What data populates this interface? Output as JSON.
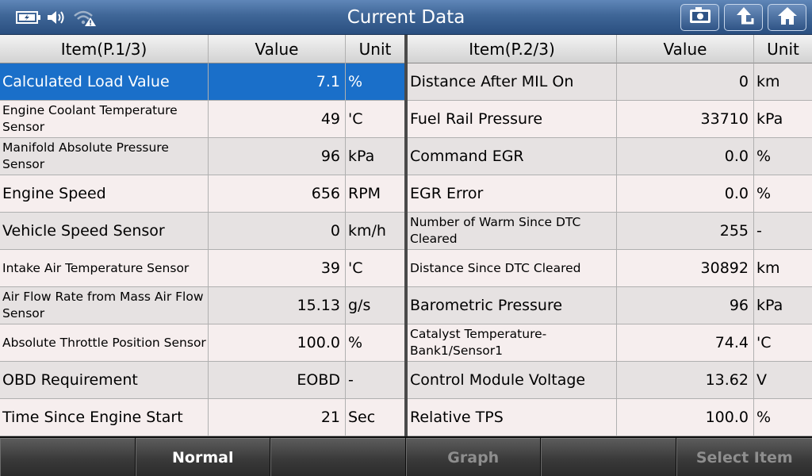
{
  "title": "Current Data",
  "footer": [
    "",
    "Normal",
    "",
    "Graph",
    "",
    "Select Item"
  ],
  "left": {
    "headers": {
      "item": "Item(P.1/3)",
      "value": "Value",
      "unit": "Unit"
    },
    "rows": [
      {
        "item": "Calculated Load Value",
        "value": "7.1",
        "unit": "%"
      },
      {
        "item": "Engine Coolant Temperature Sensor",
        "value": "49",
        "unit": "'C"
      },
      {
        "item": "Manifold Absolute Pressure Sensor",
        "value": "96",
        "unit": "kPa"
      },
      {
        "item": "Engine Speed",
        "value": "656",
        "unit": "RPM"
      },
      {
        "item": "Vehicle Speed Sensor",
        "value": "0",
        "unit": "km/h"
      },
      {
        "item": "Intake Air Temperature Sensor",
        "value": "39",
        "unit": "'C"
      },
      {
        "item": "Air Flow Rate from Mass Air Flow Sensor",
        "value": "15.13",
        "unit": "g/s"
      },
      {
        "item": "Absolute Throttle Position Sensor",
        "value": "100.0",
        "unit": "%"
      },
      {
        "item": "OBD Requirement",
        "value": "EOBD",
        "unit": "-"
      },
      {
        "item": "Time Since Engine Start",
        "value": "21",
        "unit": "Sec"
      }
    ]
  },
  "right": {
    "headers": {
      "item": "Item(P.2/3)",
      "value": "Value",
      "unit": "Unit"
    },
    "rows": [
      {
        "item": "Distance After MIL On",
        "value": "0",
        "unit": "km"
      },
      {
        "item": "Fuel Rail Pressure",
        "value": "33710",
        "unit": "kPa"
      },
      {
        "item": "Command EGR",
        "value": "0.0",
        "unit": "%"
      },
      {
        "item": "EGR Error",
        "value": "0.0",
        "unit": "%"
      },
      {
        "item": "Number of Warm Since DTC Cleared",
        "value": "255",
        "unit": "-"
      },
      {
        "item": "Distance Since DTC Cleared",
        "value": "30892",
        "unit": "km"
      },
      {
        "item": "Barometric Pressure",
        "value": "96",
        "unit": "kPa"
      },
      {
        "item": "Catalyst Temperature-Bank1/Sensor1",
        "value": "74.4",
        "unit": "'C"
      },
      {
        "item": "Control Module Voltage",
        "value": "13.62",
        "unit": "V"
      },
      {
        "item": "Relative TPS",
        "value": "100.0",
        "unit": "%"
      }
    ]
  }
}
